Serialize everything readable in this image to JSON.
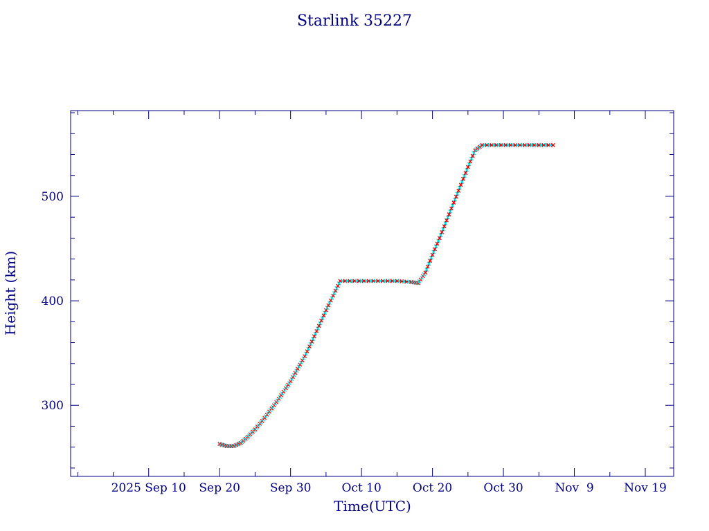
{
  "chart_data": {
    "type": "scatter",
    "title": "Starlink 35227",
    "xlabel": "Time(UTC)",
    "ylabel": "Height (km)",
    "x_unit": "date",
    "xlim": [
      "2025-08-30",
      "2025-11-23"
    ],
    "ylim": [
      232,
      582
    ],
    "x_major_ticks": [
      "2025-09-10",
      "2025-09-20",
      "2025-09-30",
      "2025-10-10",
      "2025-10-20",
      "2025-10-30",
      "2025-11-09",
      "2025-11-19"
    ],
    "x_tick_labels": [
      "2025 Sep 10",
      "Sep 20",
      "Sep 30",
      "Oct 10",
      "Oct 20",
      "Oct 30",
      "Nov  9",
      "Nov 19"
    ],
    "y_major_ticks": [
      300,
      400,
      500
    ],
    "y_tick_labels": [
      "300",
      "400",
      "500"
    ],
    "y_minor_step": 20,
    "grid": false,
    "colors": {
      "axes": "#000080",
      "line": "#000000",
      "points_primary": "#ff0000",
      "points_secondary": "#00e5ee"
    },
    "series": [
      {
        "points": [
          [
            "2025-09-20",
            263
          ],
          [
            "2025-09-21",
            261
          ],
          [
            "2025-09-22",
            261
          ],
          [
            "2025-09-23",
            264
          ],
          [
            "2025-09-24",
            270
          ],
          [
            "2025-09-25",
            277
          ],
          [
            "2025-09-26",
            285
          ],
          [
            "2025-09-27",
            294
          ],
          [
            "2025-09-28",
            303
          ],
          [
            "2025-09-29",
            313
          ],
          [
            "2025-09-30",
            323
          ],
          [
            "2025-10-01",
            335
          ],
          [
            "2025-10-02",
            347
          ],
          [
            "2025-10-03",
            361
          ],
          [
            "2025-10-04",
            376
          ],
          [
            "2025-10-05",
            391
          ],
          [
            "2025-10-06",
            405
          ],
          [
            "2025-10-07",
            419
          ],
          [
            "2025-10-09",
            419
          ],
          [
            "2025-10-11",
            419
          ],
          [
            "2025-10-13",
            419
          ],
          [
            "2025-10-15",
            419
          ],
          [
            "2025-10-17",
            418
          ],
          [
            "2025-10-18",
            417
          ],
          [
            "2025-10-19",
            427
          ],
          [
            "2025-10-20",
            444
          ],
          [
            "2025-10-21",
            460
          ],
          [
            "2025-10-22",
            477
          ],
          [
            "2025-10-23",
            494
          ],
          [
            "2025-10-24",
            511
          ],
          [
            "2025-10-25",
            528
          ],
          [
            "2025-10-26",
            544
          ],
          [
            "2025-10-27",
            549
          ],
          [
            "2025-10-29",
            549
          ],
          [
            "2025-10-31",
            549
          ],
          [
            "2025-11-02",
            549
          ],
          [
            "2025-11-04",
            549
          ],
          [
            "2025-11-06",
            549
          ]
        ]
      }
    ]
  }
}
